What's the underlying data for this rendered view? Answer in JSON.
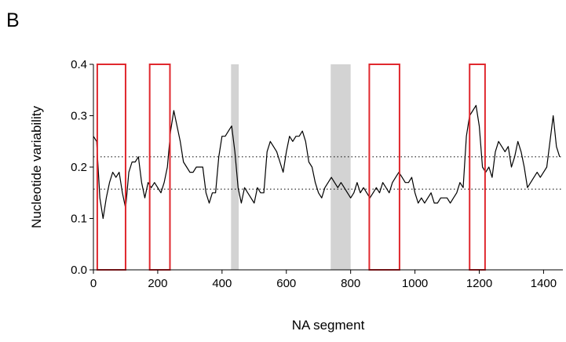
{
  "panel_label": "B",
  "chart_data": {
    "type": "line",
    "xlabel": "NA segment",
    "ylabel": "Nucleotide variability",
    "xlim": [
      0,
      1460
    ],
    "ylim": [
      0.0,
      0.4
    ],
    "x_ticks": [
      0,
      200,
      400,
      600,
      800,
      1000,
      1200,
      1400
    ],
    "x_tick_labels": [
      "0",
      "200",
      "400",
      "600",
      "800",
      "1000",
      "1200",
      "1400"
    ],
    "y_ticks": [
      0.0,
      0.1,
      0.2,
      0.3,
      0.4
    ],
    "y_tick_labels": [
      "0.0",
      "0.1",
      "0.2",
      "0.3",
      "0.4"
    ],
    "grid": false,
    "reference_lines": [
      {
        "y": 0.22,
        "style": "dotted",
        "color": "#000000"
      },
      {
        "y": 0.157,
        "style": "dotted",
        "color": "#000000"
      }
    ],
    "gray_bands": [
      {
        "x0": 428,
        "x1": 452,
        "color": "#d3d3d3"
      },
      {
        "x0": 738,
        "x1": 800,
        "color": "#d3d3d3"
      }
    ],
    "red_boxes": [
      {
        "x0": 12,
        "x1": 100,
        "color": "#e0282e"
      },
      {
        "x0": 175,
        "x1": 238,
        "color": "#e0282e"
      },
      {
        "x0": 858,
        "x1": 952,
        "color": "#e0282e"
      },
      {
        "x0": 1170,
        "x1": 1218,
        "color": "#e0282e"
      }
    ],
    "series": [
      {
        "color": "#000000",
        "x": [
          0,
          10,
          20,
          30,
          40,
          50,
          60,
          70,
          80,
          90,
          100,
          110,
          120,
          130,
          140,
          150,
          160,
          170,
          180,
          190,
          200,
          210,
          220,
          230,
          240,
          250,
          260,
          270,
          280,
          290,
          300,
          310,
          320,
          330,
          340,
          350,
          360,
          370,
          380,
          390,
          400,
          410,
          420,
          430,
          440,
          450,
          460,
          470,
          480,
          490,
          500,
          510,
          520,
          530,
          540,
          550,
          560,
          570,
          580,
          590,
          600,
          610,
          620,
          630,
          640,
          650,
          660,
          670,
          680,
          690,
          700,
          710,
          720,
          730,
          740,
          750,
          760,
          770,
          780,
          790,
          800,
          810,
          820,
          830,
          840,
          850,
          860,
          870,
          880,
          890,
          900,
          910,
          920,
          930,
          940,
          950,
          960,
          970,
          980,
          990,
          1000,
          1010,
          1020,
          1030,
          1040,
          1050,
          1060,
          1070,
          1080,
          1090,
          1100,
          1110,
          1120,
          1130,
          1140,
          1150,
          1160,
          1170,
          1180,
          1190,
          1200,
          1210,
          1220,
          1230,
          1240,
          1250,
          1260,
          1270,
          1280,
          1290,
          1300,
          1310,
          1320,
          1330,
          1340,
          1350,
          1360,
          1370,
          1380,
          1390,
          1400,
          1410,
          1420,
          1430,
          1440,
          1450
        ],
        "values": [
          0.26,
          0.25,
          0.14,
          0.1,
          0.14,
          0.17,
          0.19,
          0.18,
          0.19,
          0.15,
          0.12,
          0.19,
          0.21,
          0.21,
          0.22,
          0.17,
          0.14,
          0.17,
          0.16,
          0.17,
          0.16,
          0.15,
          0.17,
          0.2,
          0.27,
          0.31,
          0.28,
          0.25,
          0.21,
          0.2,
          0.19,
          0.19,
          0.2,
          0.2,
          0.2,
          0.15,
          0.13,
          0.15,
          0.15,
          0.22,
          0.26,
          0.26,
          0.27,
          0.28,
          0.23,
          0.16,
          0.13,
          0.16,
          0.15,
          0.14,
          0.13,
          0.16,
          0.15,
          0.15,
          0.23,
          0.25,
          0.24,
          0.23,
          0.21,
          0.19,
          0.23,
          0.26,
          0.25,
          0.26,
          0.26,
          0.27,
          0.25,
          0.21,
          0.2,
          0.17,
          0.15,
          0.14,
          0.16,
          0.17,
          0.18,
          0.17,
          0.16,
          0.17,
          0.16,
          0.15,
          0.14,
          0.15,
          0.17,
          0.15,
          0.16,
          0.15,
          0.14,
          0.15,
          0.16,
          0.15,
          0.17,
          0.16,
          0.15,
          0.17,
          0.18,
          0.19,
          0.18,
          0.17,
          0.17,
          0.18,
          0.15,
          0.13,
          0.14,
          0.13,
          0.14,
          0.15,
          0.13,
          0.13,
          0.14,
          0.14,
          0.14,
          0.13,
          0.14,
          0.15,
          0.17,
          0.16,
          0.26,
          0.3,
          0.31,
          0.32,
          0.28,
          0.2,
          0.19,
          0.2,
          0.18,
          0.23,
          0.25,
          0.24,
          0.23,
          0.24,
          0.2,
          0.22,
          0.25,
          0.23,
          0.2,
          0.16,
          0.17,
          0.18,
          0.19,
          0.18,
          0.19,
          0.2,
          0.25,
          0.3,
          0.24,
          0.22
        ]
      }
    ]
  }
}
